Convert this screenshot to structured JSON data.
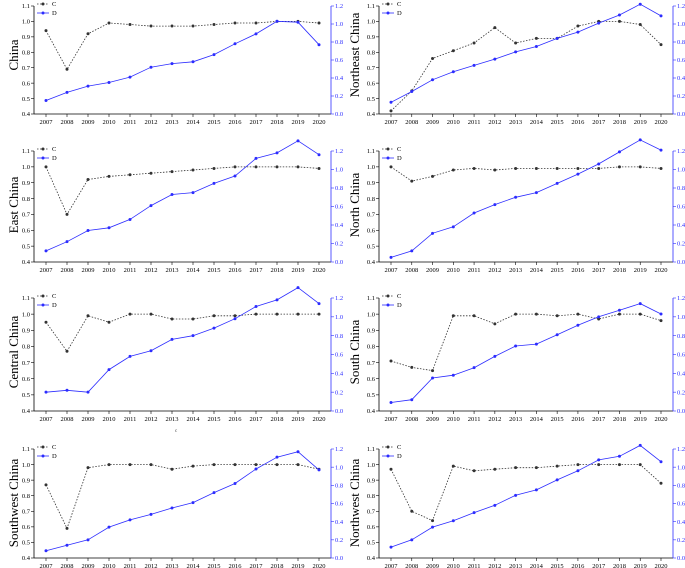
{
  "colors": {
    "C": "#333333",
    "D": "#2c2cff",
    "axis": "#000000",
    "right_axis": "#3030ff"
  },
  "stray_mark": "c",
  "chart_data": [
    {
      "type": "line",
      "ylabel": "China",
      "categories": [
        "2007",
        "2008",
        "2009",
        "2010",
        "2011",
        "2012",
        "2013",
        "2014",
        "2015",
        "2016",
        "2017",
        "2018",
        "2019",
        "2020"
      ],
      "left_axis": {
        "ylim": [
          0.4,
          1.1
        ],
        "ticks": [
          "0.4",
          "0.5",
          "0.6",
          "0.7",
          "0.8",
          "0.9",
          "1.0",
          "1.1"
        ]
      },
      "right_axis": {
        "ylim": [
          0.0,
          1.2
        ],
        "ticks": [
          "0.0",
          "0.2",
          "0.4",
          "0.6",
          "0.8",
          "1.0",
          "1.2"
        ]
      },
      "legend": [
        "C",
        "D"
      ],
      "series": [
        {
          "name": "C",
          "axis": "left",
          "values": [
            0.94,
            0.69,
            0.92,
            0.99,
            0.98,
            0.97,
            0.97,
            0.97,
            0.98,
            0.99,
            0.99,
            1.0,
            1.0,
            0.99
          ]
        },
        {
          "name": "D",
          "axis": "right",
          "values": [
            0.15,
            0.24,
            0.31,
            0.35,
            0.41,
            0.52,
            0.56,
            0.58,
            0.66,
            0.78,
            0.89,
            1.03,
            1.02,
            0.77
          ]
        }
      ]
    },
    {
      "type": "line",
      "ylabel": "Northeast China",
      "categories": [
        "2007",
        "2008",
        "2009",
        "2010",
        "2011",
        "2012",
        "2013",
        "2014",
        "2015",
        "2016",
        "2017",
        "2018",
        "2019",
        "2020"
      ],
      "left_axis": {
        "ylim": [
          0.4,
          1.1
        ],
        "ticks": [
          "0.4",
          "0.5",
          "0.6",
          "0.7",
          "0.8",
          "0.9",
          "1.0",
          "1.1"
        ]
      },
      "right_axis": {
        "ylim": [
          0.0,
          1.2
        ],
        "ticks": [
          "0.0",
          "0.2",
          "0.4",
          "0.6",
          "0.8",
          "1.0",
          "1.2"
        ]
      },
      "legend": [
        "C",
        "D"
      ],
      "series": [
        {
          "name": "C",
          "axis": "left",
          "values": [
            0.42,
            0.55,
            0.76,
            0.81,
            0.86,
            0.96,
            0.86,
            0.89,
            0.89,
            0.97,
            1.0,
            1.0,
            0.98,
            0.85
          ]
        },
        {
          "name": "D",
          "axis": "right",
          "values": [
            0.13,
            0.25,
            0.38,
            0.47,
            0.54,
            0.61,
            0.69,
            0.75,
            0.84,
            0.91,
            1.01,
            1.1,
            1.22,
            1.09
          ]
        }
      ]
    },
    {
      "type": "line",
      "ylabel": "East China",
      "categories": [
        "2007",
        "2008",
        "2009",
        "2010",
        "2011",
        "2012",
        "2013",
        "2014",
        "2015",
        "2016",
        "2017",
        "2018",
        "2019",
        "2020"
      ],
      "left_axis": {
        "ylim": [
          0.4,
          1.1
        ],
        "ticks": [
          "0.4",
          "0.5",
          "0.6",
          "0.7",
          "0.8",
          "0.9",
          "1.0",
          "1.1"
        ]
      },
      "right_axis": {
        "ylim": [
          0.0,
          1.2
        ],
        "ticks": [
          "0.0",
          "0.2",
          "0.4",
          "0.6",
          "0.8",
          "1.0",
          "1.2"
        ]
      },
      "legend": [
        "C",
        "D"
      ],
      "series": [
        {
          "name": "C",
          "axis": "left",
          "values": [
            1.0,
            0.7,
            0.92,
            0.94,
            0.95,
            0.96,
            0.97,
            0.98,
            0.99,
            1.0,
            1.0,
            1.0,
            1.0,
            0.99
          ]
        },
        {
          "name": "D",
          "axis": "right",
          "values": [
            0.12,
            0.22,
            0.34,
            0.37,
            0.46,
            0.61,
            0.73,
            0.75,
            0.85,
            0.93,
            1.12,
            1.18,
            1.31,
            1.16
          ]
        }
      ]
    },
    {
      "type": "line",
      "ylabel": "North China",
      "categories": [
        "2007",
        "2008",
        "2009",
        "2010",
        "2011",
        "2012",
        "2013",
        "2014",
        "2015",
        "2016",
        "2017",
        "2018",
        "2019",
        "2020"
      ],
      "left_axis": {
        "ylim": [
          0.4,
          1.1
        ],
        "ticks": [
          "0.4",
          "0.5",
          "0.6",
          "0.7",
          "0.8",
          "0.9",
          "1.0",
          "1.1"
        ]
      },
      "right_axis": {
        "ylim": [
          0.0,
          1.2
        ],
        "ticks": [
          "0.0",
          "0.2",
          "0.4",
          "0.6",
          "0.8",
          "1.0",
          "1.2"
        ]
      },
      "legend": [
        "C",
        "D"
      ],
      "series": [
        {
          "name": "C",
          "axis": "left",
          "values": [
            1.0,
            0.91,
            0.94,
            0.98,
            0.99,
            0.98,
            0.99,
            0.99,
            0.99,
            0.99,
            0.99,
            1.0,
            1.0,
            0.99
          ]
        },
        {
          "name": "D",
          "axis": "right",
          "values": [
            0.05,
            0.12,
            0.31,
            0.38,
            0.53,
            0.62,
            0.7,
            0.75,
            0.85,
            0.95,
            1.06,
            1.19,
            1.32,
            1.21
          ]
        }
      ]
    },
    {
      "type": "line",
      "ylabel": "Central China",
      "categories": [
        "2007",
        "2008",
        "2009",
        "2010",
        "2011",
        "2012",
        "2013",
        "2014",
        "2015",
        "2016",
        "2017",
        "2018",
        "2019",
        "2020"
      ],
      "left_axis": {
        "ylim": [
          0.4,
          1.1
        ],
        "ticks": [
          "0.4",
          "0.5",
          "0.6",
          "0.7",
          "0.8",
          "0.9",
          "1.0",
          "1.1"
        ]
      },
      "right_axis": {
        "ylim": [
          0.0,
          1.2
        ],
        "ticks": [
          "0.0",
          "0.2",
          "0.4",
          "0.6",
          "0.8",
          "1.0",
          "1.2"
        ]
      },
      "legend": [
        "C",
        "D"
      ],
      "series": [
        {
          "name": "C",
          "axis": "left",
          "values": [
            0.95,
            0.77,
            0.99,
            0.95,
            1.0,
            1.0,
            0.97,
            0.97,
            0.99,
            0.99,
            1.0,
            1.0,
            1.0,
            1.0
          ]
        },
        {
          "name": "D",
          "axis": "right",
          "values": [
            0.2,
            0.22,
            0.2,
            0.44,
            0.58,
            0.64,
            0.76,
            0.8,
            0.88,
            0.98,
            1.11,
            1.18,
            1.31,
            1.14
          ]
        }
      ]
    },
    {
      "type": "line",
      "ylabel": "South China",
      "categories": [
        "2007",
        "2008",
        "2009",
        "2010",
        "2011",
        "2012",
        "2013",
        "2014",
        "2015",
        "2016",
        "2017",
        "2018",
        "2019",
        "2020"
      ],
      "left_axis": {
        "ylim": [
          0.4,
          1.1
        ],
        "ticks": [
          "0.4",
          "0.5",
          "0.6",
          "0.7",
          "0.8",
          "0.9",
          "1.0",
          "1.1"
        ]
      },
      "right_axis": {
        "ylim": [
          0.0,
          1.2
        ],
        "ticks": [
          "0.0",
          "0.2",
          "0.4",
          "0.6",
          "0.8",
          "1.0",
          "1.2"
        ]
      },
      "legend": [
        "C",
        "D"
      ],
      "series": [
        {
          "name": "C",
          "axis": "left",
          "values": [
            0.71,
            0.67,
            0.65,
            0.99,
            0.99,
            0.94,
            1.0,
            1.0,
            0.99,
            1.0,
            0.97,
            1.0,
            1.0,
            0.96
          ]
        },
        {
          "name": "D",
          "axis": "right",
          "values": [
            0.09,
            0.12,
            0.35,
            0.38,
            0.46,
            0.58,
            0.69,
            0.71,
            0.81,
            0.91,
            1.0,
            1.07,
            1.14,
            1.03
          ]
        }
      ]
    },
    {
      "type": "line",
      "ylabel": "Southwest China",
      "categories": [
        "2007",
        "2008",
        "2009",
        "2010",
        "2011",
        "2012",
        "2013",
        "2014",
        "2015",
        "2016",
        "2017",
        "2018",
        "2019",
        "2020"
      ],
      "left_axis": {
        "ylim": [
          0.4,
          1.1
        ],
        "ticks": [
          "0.4",
          "0.5",
          "0.6",
          "0.7",
          "0.8",
          "0.9",
          "1.0",
          "1.1"
        ]
      },
      "right_axis": {
        "ylim": [
          0.0,
          1.2
        ],
        "ticks": [
          "0.0",
          "0.2",
          "0.4",
          "0.6",
          "0.8",
          "1.0",
          "1.2"
        ]
      },
      "legend": [
        "C",
        "D"
      ],
      "series": [
        {
          "name": "C",
          "axis": "left",
          "values": [
            0.87,
            0.59,
            0.98,
            1.0,
            1.0,
            1.0,
            0.97,
            0.99,
            1.0,
            1.0,
            1.0,
            1.0,
            1.0,
            0.97
          ]
        },
        {
          "name": "D",
          "axis": "right",
          "values": [
            0.08,
            0.14,
            0.2,
            0.34,
            0.42,
            0.48,
            0.55,
            0.61,
            0.72,
            0.82,
            0.98,
            1.11,
            1.17,
            0.97
          ]
        }
      ]
    },
    {
      "type": "line",
      "ylabel": "Northwest China",
      "categories": [
        "2007",
        "2008",
        "2009",
        "2010",
        "2011",
        "2012",
        "2013",
        "2014",
        "2015",
        "2016",
        "2017",
        "2018",
        "2019",
        "2020"
      ],
      "left_axis": {
        "ylim": [
          0.4,
          1.1
        ],
        "ticks": [
          "0.4",
          "0.5",
          "0.6",
          "0.7",
          "0.8",
          "0.9",
          "1.0",
          "1.1"
        ]
      },
      "right_axis": {
        "ylim": [
          0.0,
          1.2
        ],
        "ticks": [
          "0.0",
          "0.2",
          "0.4",
          "0.6",
          "0.8",
          "1.0",
          "1.2"
        ]
      },
      "legend": [
        "C",
        "D"
      ],
      "series": [
        {
          "name": "C",
          "axis": "left",
          "values": [
            0.97,
            0.7,
            0.64,
            0.99,
            0.96,
            0.97,
            0.98,
            0.98,
            0.99,
            1.0,
            1.0,
            1.0,
            1.0,
            0.88
          ]
        },
        {
          "name": "D",
          "axis": "right",
          "values": [
            0.12,
            0.2,
            0.34,
            0.41,
            0.5,
            0.58,
            0.69,
            0.75,
            0.86,
            0.96,
            1.08,
            1.12,
            1.24,
            1.06
          ]
        }
      ]
    }
  ]
}
